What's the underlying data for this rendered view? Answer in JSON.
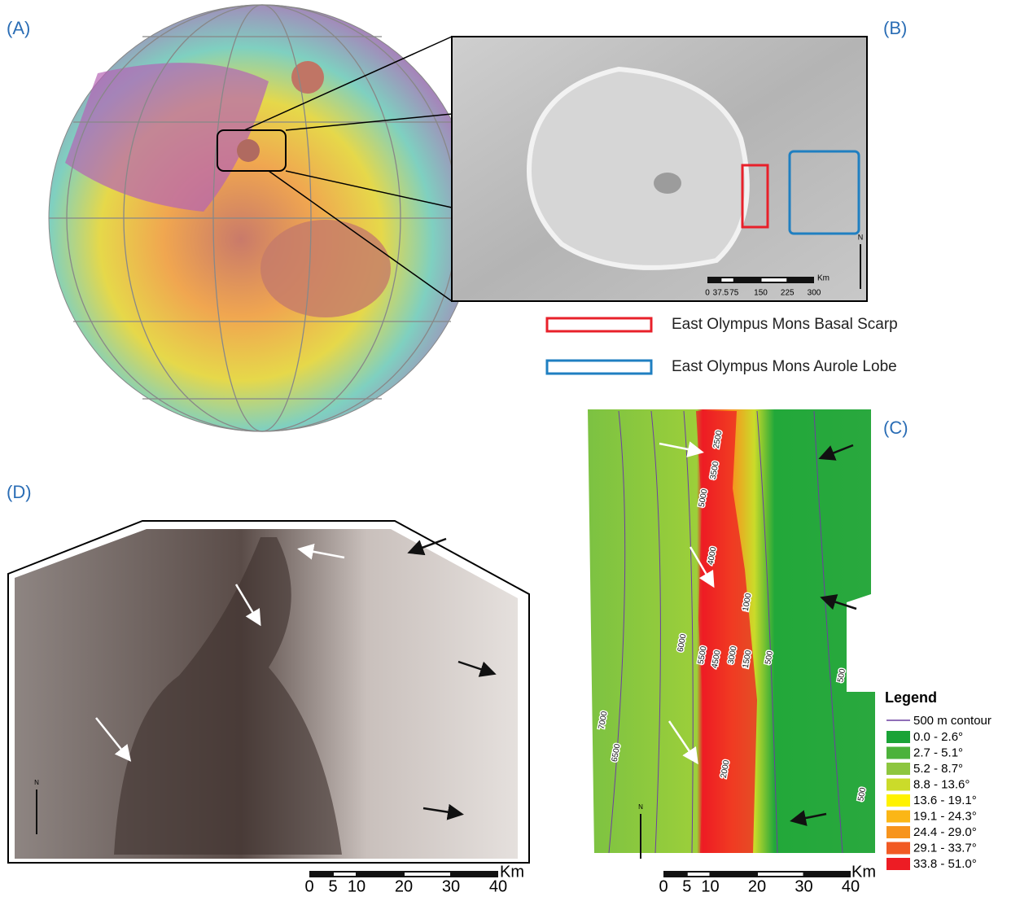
{
  "panels": {
    "a": "(A)",
    "b": "(B)",
    "c": "(C)",
    "d": "(D)"
  },
  "panel_b": {
    "scale": [
      0,
      37.5,
      75,
      150,
      225,
      300
    ],
    "unit": "Km",
    "north": "N",
    "legend": [
      {
        "label": "East Olympus Mons Basal Scarp",
        "color": "#e8202a"
      },
      {
        "label": "East Olympus Mons Aurole Lobe",
        "color": "#1f7fc1"
      }
    ]
  },
  "panel_c": {
    "contours": [
      "2500",
      "3500",
      "5000",
      "4000",
      "1000",
      "6000",
      "5500",
      "4500",
      "3000",
      "1500",
      "500",
      "500",
      "7000",
      "6500",
      "2000",
      "500"
    ],
    "legend_title": "Legend",
    "contour_label": "500 m contour",
    "classes": [
      {
        "label": "0.0 - 2.6°",
        "color": "#1aa337"
      },
      {
        "label": "2.7 - 5.1°",
        "color": "#4cb23b"
      },
      {
        "label": "5.2 -  8.7°",
        "color": "#8dc63f"
      },
      {
        "label": "8.8 - 13.6°",
        "color": "#cbdb2a"
      },
      {
        "label": "13.6 - 19.1°",
        "color": "#fff200"
      },
      {
        "label": "19.1 - 24.3°",
        "color": "#fbb616"
      },
      {
        "label": "24.4 - 29.0°",
        "color": "#f7941d"
      },
      {
        "label": "29.1 - 33.7°",
        "color": "#f15a24"
      },
      {
        "label": "33.8 - 51.0°",
        "color": "#ed1c24"
      }
    ],
    "scale": [
      0,
      5,
      10,
      20,
      30,
      40
    ],
    "unit": "Km",
    "north": "N"
  },
  "panel_d": {
    "scale": [
      0,
      5,
      10,
      20,
      30,
      40
    ],
    "unit": "Km",
    "north": "N"
  }
}
